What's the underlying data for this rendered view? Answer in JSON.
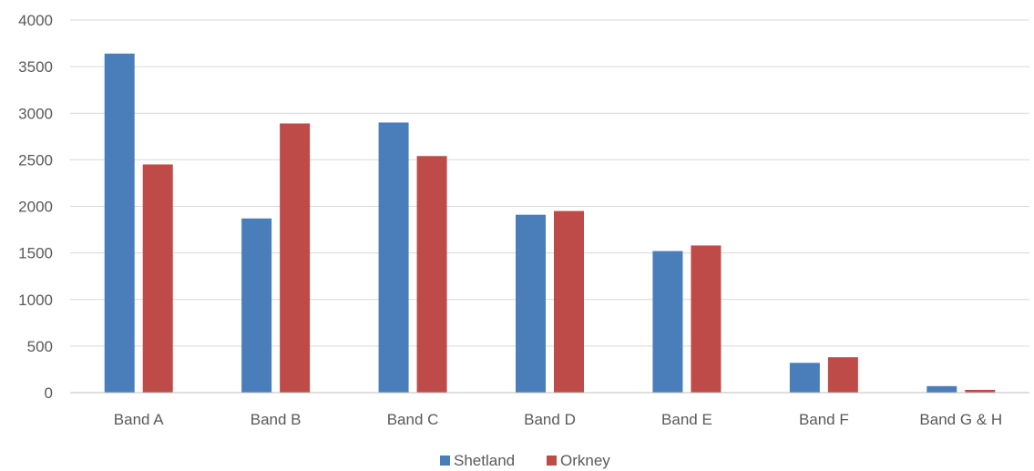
{
  "chart_data": {
    "type": "bar",
    "title": "",
    "xlabel": "",
    "ylabel": "",
    "categories": [
      "Band A",
      "Band B",
      "Band C",
      "Band D",
      "Band E",
      "Band F",
      "Band G & H"
    ],
    "series": [
      {
        "name": "Shetland",
        "color": "#4a7ebb",
        "values": [
          3640,
          1870,
          2900,
          1910,
          1520,
          320,
          70
        ]
      },
      {
        "name": "Orkney",
        "color": "#be4b48",
        "values": [
          2450,
          2890,
          2540,
          1950,
          1580,
          380,
          30
        ]
      }
    ],
    "ylim": [
      0,
      4000
    ],
    "yticks": [
      0,
      500,
      1000,
      1500,
      2000,
      2500,
      3000,
      3500,
      4000
    ],
    "grid": true,
    "legend_position": "bottom"
  }
}
